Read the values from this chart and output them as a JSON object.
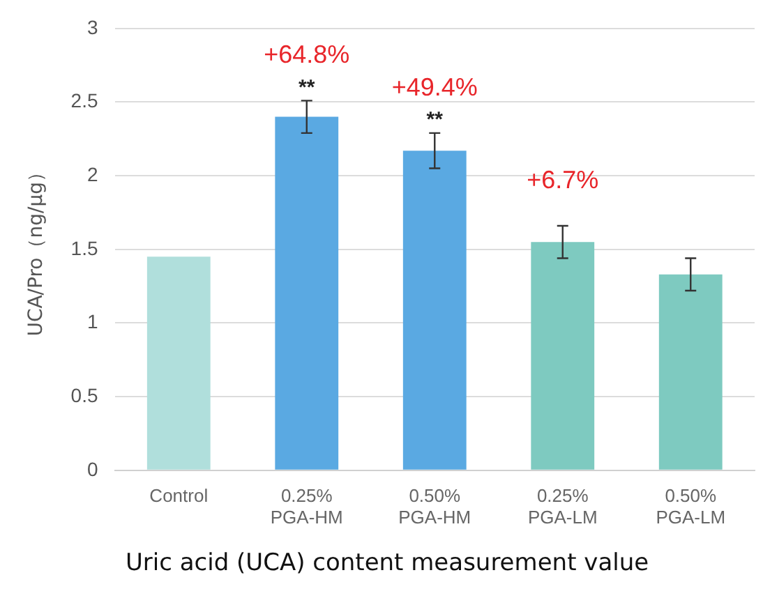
{
  "chart_data": {
    "type": "bar",
    "title": "Uric acid (UCA) content measurement value",
    "ylabel": "UCA/Pro（ng/μg）",
    "categories": [
      "Control",
      "0.25% PGA-HM",
      "0.50% PGA-HM",
      "0.25% PGA-LM",
      "0.50% PGA-LM"
    ],
    "values": [
      1.45,
      2.4,
      2.17,
      1.55,
      1.33
    ],
    "colors": [
      "#b0dfdc",
      "#5aa9e2",
      "#5aa9e2",
      "#7ecac0",
      "#7ecac0"
    ],
    "errors": [
      null,
      0.11,
      0.12,
      0.11,
      0.11
    ],
    "ylim": [
      0,
      3
    ],
    "yticks": [
      0,
      0.5,
      1,
      1.5,
      2,
      2.5,
      3
    ],
    "grid": "y",
    "legend": false,
    "annotations": [
      {
        "text": "**",
        "x": "0.25% PGA-HM",
        "y": 2.4
      },
      {
        "text": "+64.8%",
        "x": "0.25% PGA-HM",
        "y": 2.4
      },
      {
        "text": "**",
        "x": "0.50% PGA-HM",
        "y": 2.17
      },
      {
        "text": "+49.4%",
        "x": "0.50% PGA-HM",
        "y": 2.17
      },
      {
        "text": "+6.7%",
        "x": "0.25% PGA-LM",
        "y": 1.55
      }
    ]
  }
}
